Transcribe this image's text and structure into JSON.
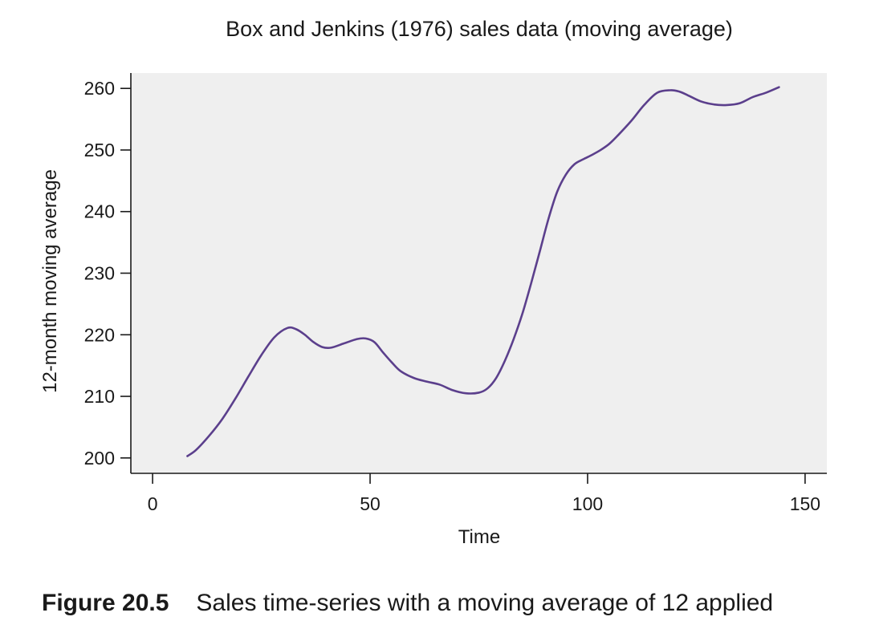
{
  "chart_data": {
    "type": "line",
    "title": "Box and Jenkins (1976) sales data (moving average)",
    "xlabel": "Time",
    "ylabel": "12-month moving average",
    "xlim": [
      -5,
      155
    ],
    "ylim": [
      197.5,
      262.5
    ],
    "xticks": [
      0,
      50,
      100,
      150
    ],
    "yticks": [
      200,
      210,
      220,
      230,
      240,
      250,
      260
    ],
    "grid": false,
    "colors": {
      "line": "#5b3f8c",
      "plot_background": "#efefef"
    },
    "series": [
      {
        "x": [
          8,
          10,
          13,
          16,
          19,
          22,
          25,
          28,
          31,
          33,
          35,
          37,
          39,
          41,
          44,
          47,
          49,
          51,
          53,
          55,
          57,
          60,
          63,
          66,
          69,
          72,
          75,
          77,
          79,
          81,
          83,
          85,
          87,
          89,
          91,
          93,
          95,
          97,
          99,
          101,
          103,
          105,
          107,
          110,
          113,
          116,
          119,
          121,
          123,
          126,
          129,
          132,
          135,
          138,
          141,
          144
        ],
        "y": [
          200.3,
          201.3,
          203.6,
          206.3,
          209.6,
          213.2,
          216.7,
          219.6,
          221.1,
          220.9,
          220.0,
          218.8,
          218.0,
          217.9,
          218.6,
          219.3,
          219.4,
          218.8,
          217.1,
          215.5,
          214.1,
          213.0,
          212.4,
          211.9,
          211.0,
          210.5,
          210.6,
          211.3,
          213.0,
          215.8,
          219.3,
          223.4,
          228.3,
          233.5,
          238.8,
          243.2,
          246.0,
          247.7,
          248.5,
          249.2,
          250.0,
          251.0,
          252.4,
          254.7,
          257.3,
          259.3,
          259.7,
          259.5,
          258.9,
          257.9,
          257.4,
          257.3,
          257.6,
          258.6,
          259.3,
          260.2
        ]
      }
    ]
  },
  "caption": {
    "label": "Figure 20.5",
    "text": "Sales time-series with a moving average of 12 applied"
  }
}
